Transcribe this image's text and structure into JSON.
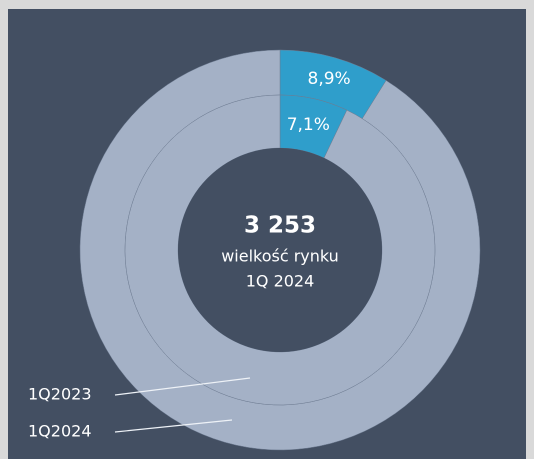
{
  "chart_data": {
    "type": "donut",
    "center_text": [
      "3 253",
      "wielkość rynku",
      "1Q 2024"
    ],
    "series": [
      {
        "name": "1Q2024",
        "colors": [
          "#2f9ecb",
          "#a4b1c6"
        ],
        "values": [
          8.9,
          91.1
        ],
        "value_labels": [
          "8,9%",
          null
        ]
      },
      {
        "name": "1Q2023",
        "colors": [
          "#2f9ecb",
          "#a4b1c6"
        ],
        "values": [
          7.1,
          92.9
        ],
        "value_labels": [
          "7,1%",
          null
        ]
      }
    ]
  }
}
